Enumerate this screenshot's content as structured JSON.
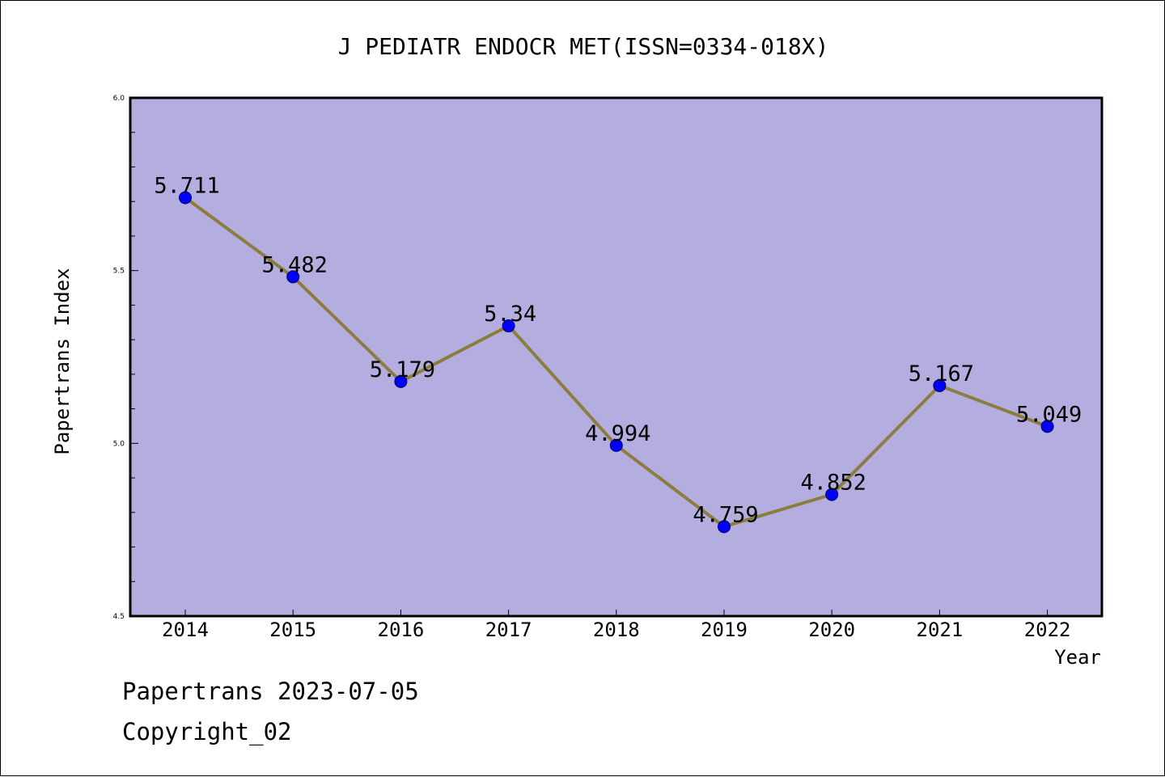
{
  "chart_data": {
    "type": "line",
    "title": "J PEDIATR ENDOCR MET(ISSN=0334-018X)",
    "xlabel": "Year",
    "ylabel": "Papertrans Index",
    "x": [
      "2014",
      "2015",
      "2016",
      "2017",
      "2018",
      "2019",
      "2020",
      "2021",
      "2022"
    ],
    "series": [
      {
        "values": [
          5.711,
          5.482,
          5.179,
          5.34,
          4.994,
          4.759,
          4.852,
          5.167,
          5.049
        ],
        "data_labels": [
          "5.711",
          "5.482",
          "5.179",
          "5.34",
          "4.994",
          "4.759",
          "4.852",
          "5.167",
          "5.049"
        ],
        "line_color": "#8b7d3e",
        "marker_color": "#0000ff"
      }
    ],
    "ylim": [
      4.5,
      6.0
    ],
    "yticks": [
      "4.5",
      "5.0",
      "5.5",
      "6.0"
    ],
    "plot_background": "#b4aee0",
    "grid": false,
    "legend": false
  },
  "footer": {
    "line1": "Papertrans 2023-07-05",
    "line2": "Copyright_02"
  }
}
